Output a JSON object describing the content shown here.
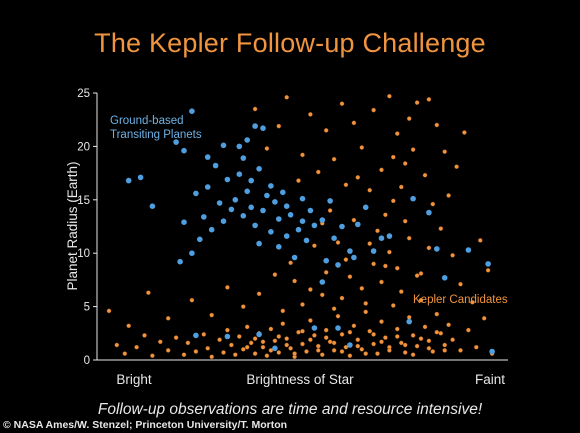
{
  "chart_data": {
    "type": "scatter",
    "title": "The Kepler Follow-up Challenge",
    "xlabel": "Brightness of Star",
    "ylabel": "Planet Radius (Earth)",
    "ylim": [
      0,
      25
    ],
    "y_ticks": [
      0,
      5,
      10,
      15,
      20,
      25
    ],
    "x_tick_labels": [
      "Bright",
      "Brightness of Star",
      "Faint"
    ],
    "annotations": [
      {
        "text_lines": [
          "Ground-based",
          "Transiting Planets"
        ],
        "series": "ground"
      },
      {
        "text_lines": [
          "Kepler Candidates"
        ],
        "series": "kepler"
      }
    ],
    "colors": {
      "kepler": "#f0943f",
      "ground": "#4f9fe0",
      "title": "#f0943f"
    },
    "series": [
      {
        "name": "Ground-based Transiting Planets",
        "color": "#4f9fe0",
        "points": [
          [
            0.06,
            16.8
          ],
          [
            0.09,
            17.1
          ],
          [
            0.12,
            14.4
          ],
          [
            0.2,
            12.9
          ],
          [
            0.23,
            15.6
          ],
          [
            0.26,
            16.2
          ],
          [
            0.22,
            23.3
          ],
          [
            0.18,
            20.4
          ],
          [
            0.2,
            19.6
          ],
          [
            0.26,
            19.0
          ],
          [
            0.3,
            20.1
          ],
          [
            0.34,
            20.0
          ],
          [
            0.36,
            20.6
          ],
          [
            0.38,
            21.9
          ],
          [
            0.4,
            21.7
          ],
          [
            0.28,
            18.2
          ],
          [
            0.31,
            16.9
          ],
          [
            0.34,
            17.4
          ],
          [
            0.37,
            16.8
          ],
          [
            0.39,
            17.9
          ],
          [
            0.42,
            16.3
          ],
          [
            0.45,
            15.7
          ],
          [
            0.43,
            14.8
          ],
          [
            0.4,
            14.0
          ],
          [
            0.47,
            13.6
          ],
          [
            0.5,
            15.1
          ],
          [
            0.52,
            14.0
          ],
          [
            0.55,
            13.1
          ],
          [
            0.57,
            14.9
          ],
          [
            0.53,
            12.6
          ],
          [
            0.49,
            12.2
          ],
          [
            0.46,
            11.6
          ],
          [
            0.6,
            12.5
          ],
          [
            0.58,
            11.4
          ],
          [
            0.62,
            10.2
          ],
          [
            0.64,
            12.7
          ],
          [
            0.66,
            14.3
          ],
          [
            0.7,
            11.4
          ],
          [
            0.72,
            11.6
          ],
          [
            0.33,
            15.0
          ],
          [
            0.29,
            14.7
          ],
          [
            0.25,
            13.4
          ],
          [
            0.27,
            12.2
          ],
          [
            0.24,
            11.3
          ],
          [
            0.22,
            10.0
          ],
          [
            0.19,
            9.2
          ],
          [
            0.3,
            13.0
          ],
          [
            0.35,
            13.5
          ],
          [
            0.38,
            12.6
          ],
          [
            0.42,
            12.0
          ],
          [
            0.44,
            10.6
          ],
          [
            0.48,
            9.6
          ],
          [
            0.56,
            9.3
          ],
          [
            0.59,
            8.9
          ],
          [
            0.63,
            9.6
          ],
          [
            0.55,
            7.3
          ],
          [
            0.68,
            10.2
          ],
          [
            0.78,
            15.1
          ],
          [
            0.82,
            13.8
          ],
          [
            0.84,
            10.4
          ],
          [
            0.86,
            7.7
          ],
          [
            0.92,
            10.3
          ],
          [
            0.97,
            9.0
          ],
          [
            0.98,
            0.8
          ],
          [
            0.53,
            3.0
          ],
          [
            0.39,
            2.4
          ],
          [
            0.31,
            2.2
          ],
          [
            0.23,
            2.3
          ],
          [
            0.43,
            1.1
          ],
          [
            0.62,
            1.4
          ],
          [
            0.77,
            3.6
          ],
          [
            0.59,
            3.0
          ],
          [
            0.35,
            18.9
          ],
          [
            0.37,
            14.3
          ],
          [
            0.41,
            15.4
          ],
          [
            0.36,
            15.8
          ],
          [
            0.32,
            14.1
          ],
          [
            0.46,
            14.4
          ],
          [
            0.5,
            13.0
          ],
          [
            0.44,
            13.2
          ],
          [
            0.51,
            11.2
          ],
          [
            0.39,
            10.9
          ]
        ]
      },
      {
        "name": "Kepler Candidates",
        "color": "#f0943f",
        "points": [
          [
            0.01,
            4.6
          ],
          [
            0.03,
            1.4
          ],
          [
            0.05,
            0.6
          ],
          [
            0.08,
            1.2
          ],
          [
            0.1,
            2.3
          ],
          [
            0.12,
            0.4
          ],
          [
            0.14,
            1.7
          ],
          [
            0.16,
            0.9
          ],
          [
            0.18,
            2.1
          ],
          [
            0.2,
            0.5
          ],
          [
            0.21,
            1.6
          ],
          [
            0.23,
            0.8
          ],
          [
            0.25,
            2.4
          ],
          [
            0.26,
            1.1
          ],
          [
            0.27,
            0.3
          ],
          [
            0.29,
            1.9
          ],
          [
            0.3,
            0.7
          ],
          [
            0.31,
            2.8
          ],
          [
            0.32,
            1.4
          ],
          [
            0.33,
            0.5
          ],
          [
            0.34,
            2.2
          ],
          [
            0.35,
            1.0
          ],
          [
            0.36,
            3.1
          ],
          [
            0.37,
            1.6
          ],
          [
            0.38,
            0.6
          ],
          [
            0.39,
            2.5
          ],
          [
            0.4,
            1.2
          ],
          [
            0.41,
            0.4
          ],
          [
            0.42,
            2.9
          ],
          [
            0.43,
            1.8
          ],
          [
            0.44,
            0.7
          ],
          [
            0.45,
            3.4
          ],
          [
            0.46,
            2.0
          ],
          [
            0.47,
            1.1
          ],
          [
            0.48,
            0.3
          ],
          [
            0.49,
            2.6
          ],
          [
            0.5,
            1.5
          ],
          [
            0.51,
            0.8
          ],
          [
            0.52,
            3.7
          ],
          [
            0.53,
            2.3
          ],
          [
            0.54,
            1.3
          ],
          [
            0.55,
            0.5
          ],
          [
            0.56,
            2.8
          ],
          [
            0.57,
            1.7
          ],
          [
            0.58,
            0.9
          ],
          [
            0.59,
            4.1
          ],
          [
            0.6,
            2.4
          ],
          [
            0.61,
            1.2
          ],
          [
            0.62,
            0.4
          ],
          [
            0.63,
            3.2
          ],
          [
            0.64,
            1.9
          ],
          [
            0.65,
            1.0
          ],
          [
            0.66,
            4.5
          ],
          [
            0.67,
            2.7
          ],
          [
            0.68,
            1.5
          ],
          [
            0.69,
            0.6
          ],
          [
            0.7,
            3.6
          ],
          [
            0.71,
            2.1
          ],
          [
            0.72,
            1.2
          ],
          [
            0.73,
            5.1
          ],
          [
            0.74,
            2.9
          ],
          [
            0.75,
            1.6
          ],
          [
            0.76,
            0.7
          ],
          [
            0.77,
            4.0
          ],
          [
            0.78,
            2.3
          ],
          [
            0.79,
            1.3
          ],
          [
            0.8,
            5.6
          ],
          [
            0.81,
            3.1
          ],
          [
            0.82,
            1.8
          ],
          [
            0.83,
            0.8
          ],
          [
            0.84,
            4.3
          ],
          [
            0.85,
            2.5
          ],
          [
            0.86,
            1.4
          ],
          [
            0.87,
            3.3
          ],
          [
            0.88,
            1.9
          ],
          [
            0.9,
            0.9
          ],
          [
            0.92,
            2.8
          ],
          [
            0.94,
            1.2
          ],
          [
            0.96,
            3.9
          ],
          [
            0.98,
            0.6
          ],
          [
            0.36,
            1.2
          ],
          [
            0.38,
            2.0
          ],
          [
            0.4,
            1.7
          ],
          [
            0.42,
            0.9
          ],
          [
            0.44,
            2.2
          ],
          [
            0.46,
            1.4
          ],
          [
            0.48,
            0.6
          ],
          [
            0.5,
            2.7
          ],
          [
            0.52,
            1.9
          ],
          [
            0.54,
            0.9
          ],
          [
            0.56,
            2.1
          ],
          [
            0.58,
            1.6
          ],
          [
            0.6,
            0.8
          ],
          [
            0.62,
            2.6
          ],
          [
            0.64,
            1.3
          ],
          [
            0.66,
            0.6
          ],
          [
            0.68,
            2.4
          ],
          [
            0.7,
            1.7
          ],
          [
            0.72,
            0.9
          ],
          [
            0.74,
            2.2
          ],
          [
            0.76,
            1.4
          ],
          [
            0.78,
            0.5
          ],
          [
            0.8,
            2.0
          ],
          [
            0.82,
            1.1
          ],
          [
            0.84,
            2.6
          ],
          [
            0.86,
            0.9
          ],
          [
            0.45,
            4.6
          ],
          [
            0.5,
            5.2
          ],
          [
            0.55,
            6.1
          ],
          [
            0.6,
            5.8
          ],
          [
            0.65,
            6.7
          ],
          [
            0.7,
            7.3
          ],
          [
            0.75,
            6.4
          ],
          [
            0.8,
            8.1
          ],
          [
            0.62,
            7.8
          ],
          [
            0.68,
            9.0
          ],
          [
            0.72,
            10.1
          ],
          [
            0.77,
            11.4
          ],
          [
            0.74,
            8.6
          ],
          [
            0.66,
            5.3
          ],
          [
            0.58,
            4.8
          ],
          [
            0.52,
            6.6
          ],
          [
            0.48,
            7.4
          ],
          [
            0.56,
            8.2
          ],
          [
            0.61,
            9.4
          ],
          [
            0.69,
            12.1
          ],
          [
            0.71,
            13.6
          ],
          [
            0.73,
            14.9
          ],
          [
            0.75,
            16.2
          ],
          [
            0.76,
            18.4
          ],
          [
            0.78,
            19.7
          ],
          [
            0.74,
            21.2
          ],
          [
            0.77,
            22.6
          ],
          [
            0.79,
            24.1
          ],
          [
            0.72,
            24.7
          ],
          [
            0.68,
            23.4
          ],
          [
            0.63,
            22.2
          ],
          [
            0.6,
            24.0
          ],
          [
            0.56,
            21.5
          ],
          [
            0.52,
            23.0
          ],
          [
            0.5,
            19.2
          ],
          [
            0.54,
            17.6
          ],
          [
            0.58,
            18.8
          ],
          [
            0.64,
            17.1
          ],
          [
            0.67,
            15.9
          ],
          [
            0.7,
            17.8
          ],
          [
            0.73,
            19.0
          ],
          [
            0.81,
            17.3
          ],
          [
            0.83,
            14.6
          ],
          [
            0.85,
            12.3
          ],
          [
            0.88,
            9.8
          ],
          [
            0.9,
            7.1
          ],
          [
            0.93,
            5.4
          ],
          [
            0.86,
            19.5
          ],
          [
            0.84,
            22.0
          ],
          [
            0.82,
            24.4
          ],
          [
            0.65,
            19.9
          ],
          [
            0.61,
            16.4
          ],
          [
            0.57,
            14.0
          ],
          [
            0.53,
            10.7
          ],
          [
            0.47,
            9.1
          ],
          [
            0.43,
            8.0
          ],
          [
            0.39,
            6.2
          ],
          [
            0.35,
            5.0
          ],
          [
            0.31,
            6.8
          ],
          [
            0.27,
            4.2
          ],
          [
            0.22,
            5.6
          ],
          [
            0.16,
            3.9
          ],
          [
            0.11,
            6.3
          ],
          [
            0.06,
            3.2
          ],
          [
            0.41,
            19.8
          ],
          [
            0.38,
            23.5
          ],
          [
            0.46,
            24.6
          ],
          [
            0.44,
            21.9
          ],
          [
            0.49,
            16.8
          ],
          [
            0.55,
            12.8
          ],
          [
            0.59,
            11.0
          ],
          [
            0.63,
            13.1
          ],
          [
            0.67,
            10.9
          ],
          [
            0.71,
            8.8
          ],
          [
            0.76,
            13.0
          ],
          [
            0.79,
            7.9
          ],
          [
            0.82,
            10.5
          ],
          [
            0.87,
            15.4
          ],
          [
            0.89,
            18.1
          ],
          [
            0.91,
            21.3
          ],
          [
            0.95,
            11.2
          ],
          [
            0.97,
            8.4
          ]
        ]
      }
    ]
  },
  "caption": "Follow-up observations are time and resource intensive!",
  "credit": "© NASA Ames/W. Stenzel; Princeton University/T. Morton"
}
